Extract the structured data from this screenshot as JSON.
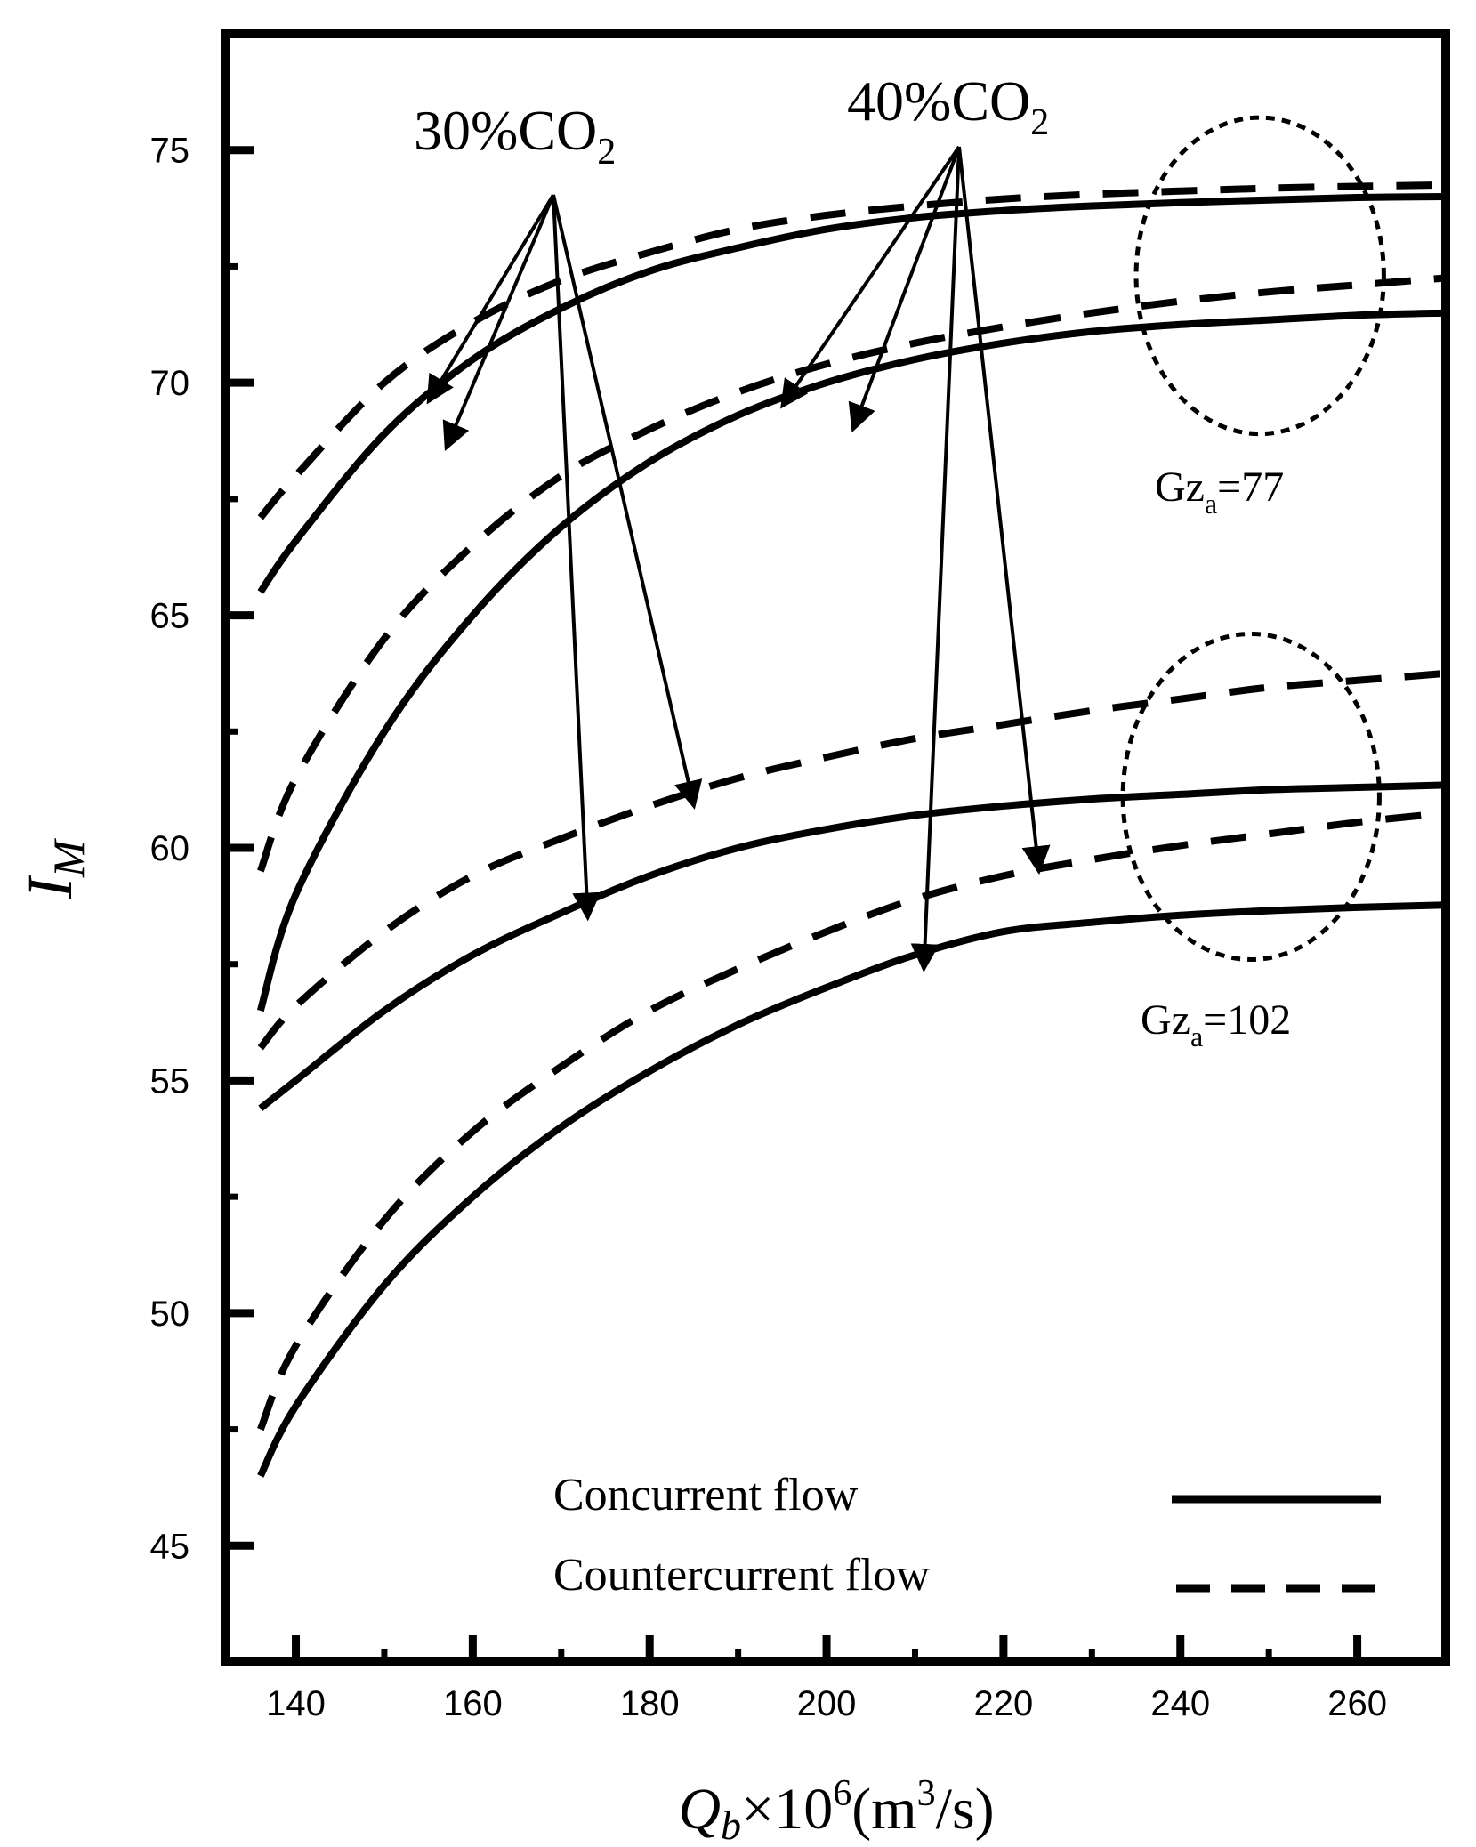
{
  "chart_data": {
    "type": "line",
    "title": "",
    "xlabel": "Q_b×10^6(m^3/s)",
    "ylabel": "I_M",
    "xlim": [
      132,
      270
    ],
    "ylim": [
      42.5,
      77.5
    ],
    "x_ticks": [
      140,
      160,
      180,
      200,
      220,
      240,
      260
    ],
    "y_ticks": [
      45,
      50,
      55,
      60,
      65,
      70,
      75
    ],
    "grid": false,
    "legend_position": "bottom-right",
    "legend": [
      {
        "label": "Concurrent flow",
        "style": "solid"
      },
      {
        "label": "Countercurrent flow",
        "style": "dashed"
      }
    ],
    "annotations": {
      "co2_30": {
        "prefix": "30%CO",
        "sub": "2"
      },
      "co2_40": {
        "prefix": "40%CO",
        "sub": "2"
      },
      "gz_77": {
        "prefix": "Gz",
        "sub": "a",
        "suffix": "=77"
      },
      "gz_102": {
        "prefix": "Gz",
        "sub": "a",
        "suffix": "=102"
      }
    },
    "x": [
      136,
      140,
      150,
      160,
      170,
      180,
      190,
      200,
      210,
      220,
      230,
      240,
      250,
      260,
      270
    ],
    "series": [
      {
        "group": "Gz_a=77, 30%CO2",
        "style": "solid",
        "values": [
          65.5,
          66.6,
          68.9,
          70.5,
          71.6,
          72.4,
          72.9,
          73.3,
          73.55,
          73.7,
          73.8,
          73.87,
          73.93,
          73.98,
          74.0
        ]
      },
      {
        "group": "Gz_a=77, 30%CO2",
        "style": "dashed",
        "values": [
          67.1,
          68.0,
          70.0,
          71.3,
          72.2,
          72.8,
          73.3,
          73.6,
          73.8,
          73.95,
          74.05,
          74.12,
          74.18,
          74.22,
          74.25
        ]
      },
      {
        "group": "Gz_a=77, 40%CO2",
        "style": "solid",
        "values": [
          56.5,
          59.0,
          62.5,
          65.0,
          66.9,
          68.3,
          69.3,
          70.0,
          70.5,
          70.85,
          71.1,
          71.25,
          71.35,
          71.45,
          71.5
        ]
      },
      {
        "group": "Gz_a=77, 40%CO2",
        "style": "dashed",
        "values": [
          59.5,
          61.5,
          64.5,
          66.5,
          68.0,
          69.0,
          69.8,
          70.4,
          70.85,
          71.2,
          71.5,
          71.75,
          71.95,
          72.1,
          72.25
        ]
      },
      {
        "group": "Gz_a=102, 30%CO2",
        "style": "solid",
        "values": [
          54.4,
          55.0,
          56.5,
          57.7,
          58.6,
          59.4,
          60.0,
          60.4,
          60.7,
          60.9,
          61.05,
          61.15,
          61.25,
          61.3,
          61.35
        ]
      },
      {
        "group": "Gz_a=102, 30%CO2",
        "style": "dashed",
        "values": [
          55.7,
          56.6,
          58.2,
          59.4,
          60.2,
          60.9,
          61.5,
          61.95,
          62.35,
          62.65,
          62.95,
          63.2,
          63.45,
          63.6,
          63.75
        ]
      },
      {
        "group": "Gz_a=102, 40%CO2",
        "style": "solid",
        "values": [
          46.5,
          48.0,
          50.6,
          52.5,
          54.0,
          55.2,
          56.2,
          57.0,
          57.7,
          58.2,
          58.4,
          58.55,
          58.65,
          58.72,
          58.77
        ]
      },
      {
        "group": "Gz_a=102, 40%CO2",
        "style": "dashed",
        "values": [
          47.5,
          49.3,
          52.0,
          53.9,
          55.3,
          56.5,
          57.4,
          58.2,
          58.9,
          59.4,
          59.75,
          60.05,
          60.3,
          60.55,
          60.75
        ]
      }
    ],
    "arrow_targets": {
      "co2_30": [
        [
          155,
          69.6
        ],
        [
          157,
          68.6
        ],
        [
          173,
          58.5
        ],
        [
          185,
          60.9
        ]
      ],
      "co2_40": [
        [
          195,
          69.5
        ],
        [
          203,
          69.0
        ],
        [
          211,
          57.4
        ],
        [
          224,
          59.5
        ]
      ]
    },
    "ellipses": [
      {
        "label": "Gz_a=77",
        "cx": 249,
        "cy": 72.3,
        "rx": 14,
        "ry": 3.4
      },
      {
        "label": "Gz_a=102",
        "cx": 248,
        "cy": 61.1,
        "rx": 14.5,
        "ry": 3.5
      }
    ]
  }
}
